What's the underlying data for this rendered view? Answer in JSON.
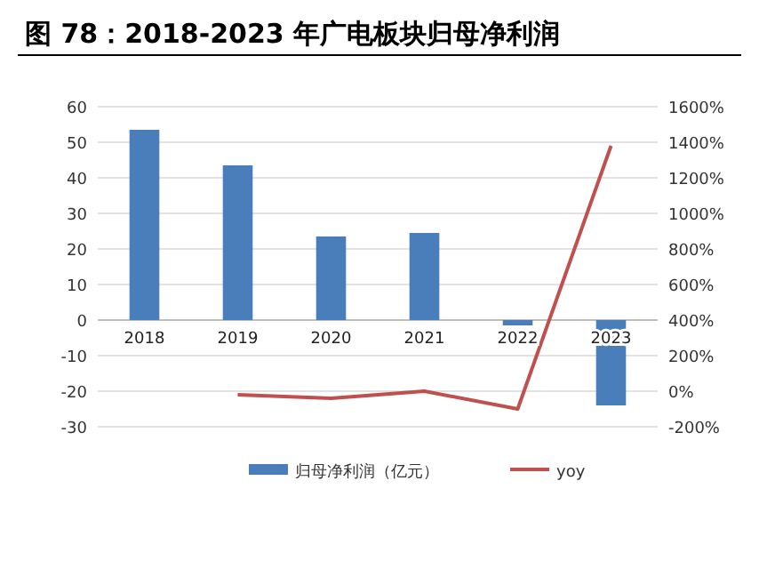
{
  "chart_data": {
    "type": "bar",
    "title": "图 78：2018-2023 年广电板块归母净利润",
    "categories": [
      "2018",
      "2019",
      "2020",
      "2021",
      "2022",
      "2023"
    ],
    "series": [
      {
        "name": "归母净利润（亿元）",
        "color": "#4a7ebb",
        "values": [
          53.5,
          43.5,
          23.5,
          24.5,
          -1.5,
          -24
        ]
      },
      {
        "name": "yoy",
        "type": "line",
        "axis": "y2",
        "color": "#c0504d",
        "values": [
          null,
          -20,
          -40,
          0,
          -100,
          1380
        ]
      }
    ],
    "ylim": [
      -30,
      60
    ],
    "yticks": [
      -30,
      -20,
      -10,
      0,
      10,
      20,
      30,
      40,
      50,
      60
    ],
    "y2lim": [
      -200,
      1600
    ],
    "y2ticks": [
      {
        "value": -200,
        "label": "-200%"
      },
      {
        "value": 0,
        "label": "0%"
      },
      {
        "value": 200,
        "label": "200%"
      },
      {
        "value": 400,
        "label": "400%"
      },
      {
        "value": 600,
        "label": "600%"
      },
      {
        "value": 800,
        "label": "800%"
      },
      {
        "value": 1000,
        "label": "1000%"
      },
      {
        "value": 1200,
        "label": "1200%"
      },
      {
        "value": 1400,
        "label": "1400%"
      },
      {
        "value": 1600,
        "label": "1600%"
      }
    ],
    "grid": "y",
    "legend": "bottom"
  }
}
